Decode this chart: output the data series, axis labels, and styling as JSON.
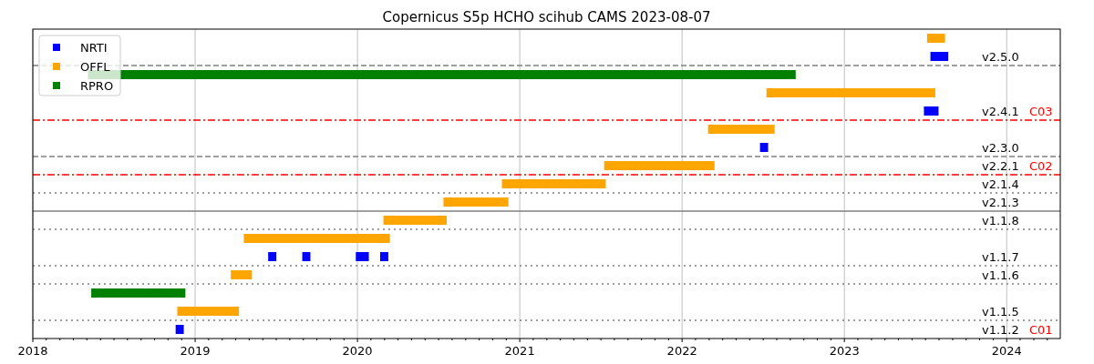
{
  "chart_data": {
    "type": "bar",
    "orientation": "horizontal",
    "title": "Copernicus S5p HCHO scihub CAMS  2023-08-07",
    "categories": [
      null,
      "v2.5.0",
      null,
      null,
      "v2.4.1",
      null,
      "v2.3.0",
      "v2.2.1",
      "v2.1.4",
      "v2.1.3",
      "v1.1.8",
      null,
      "v1.1.7",
      "v1.1.6",
      null,
      "v1.1.5",
      "v1.1.2"
    ],
    "series": [
      {
        "name": "NRTI",
        "color": "#0000ff",
        "base": [
          null,
          2023.53,
          null,
          null,
          2023.49,
          null,
          2022.48,
          null,
          null,
          null,
          null,
          null,
          2019.45,
          null,
          null,
          null,
          2018.88
        ],
        "values": [
          null,
          0.11,
          null,
          null,
          0.09,
          null,
          0.05,
          null,
          null,
          null,
          null,
          null,
          0.05,
          null,
          null,
          null,
          0.05
        ]
      },
      {
        "name": "OFFL",
        "color": "#ffa500",
        "base": [
          2023.51,
          null,
          null,
          2022.52,
          null,
          2022.16,
          null,
          2021.52,
          2020.89,
          2020.53,
          2020.16,
          2019.3,
          null,
          2019.22,
          null,
          2018.89,
          null
        ],
        "values": [
          0.11,
          null,
          null,
          1.04,
          null,
          0.41,
          null,
          0.68,
          0.64,
          0.4,
          0.39,
          0.9,
          null,
          0.13,
          null,
          0.38,
          null
        ]
      },
      {
        "name": "RPRO",
        "color": "#008000",
        "base": [
          null,
          null,
          2018.34,
          null,
          null,
          null,
          null,
          null,
          null,
          null,
          null,
          null,
          null,
          null,
          2018.36,
          null,
          null
        ],
        "values": [
          null,
          null,
          4.36,
          null,
          null,
          null,
          null,
          null,
          null,
          null,
          null,
          null,
          null,
          null,
          0.58,
          null,
          null
        ]
      },
      {
        "color": "#0000ff",
        "base": [
          null,
          null,
          null,
          null,
          null,
          null,
          null,
          null,
          null,
          null,
          null,
          null,
          2019.66,
          null,
          null,
          null,
          null
        ],
        "values": [
          null,
          null,
          null,
          null,
          null,
          null,
          null,
          null,
          null,
          null,
          null,
          null,
          0.05,
          null,
          null,
          null,
          null
        ]
      },
      {
        "color": "#0000ff",
        "base": [
          null,
          null,
          null,
          null,
          null,
          null,
          null,
          null,
          null,
          null,
          null,
          null,
          2019.99,
          null,
          null,
          null,
          null
        ],
        "values": [
          null,
          null,
          null,
          null,
          null,
          null,
          null,
          null,
          null,
          null,
          null,
          null,
          0.08,
          null,
          null,
          null,
          null
        ]
      },
      {
        "color": "#0000ff",
        "base": [
          null,
          null,
          null,
          null,
          null,
          null,
          null,
          null,
          null,
          null,
          null,
          null,
          2020.14,
          null,
          null,
          null,
          null
        ],
        "values": [
          null,
          null,
          null,
          null,
          null,
          null,
          null,
          null,
          null,
          null,
          null,
          null,
          0.05,
          null,
          null,
          null,
          null
        ]
      }
    ],
    "xlim": [
      2018,
      2024.33
    ],
    "xticks": [
      2018,
      {
        "value": 2018.083,
        "label": null
      },
      {
        "value": 2018.167,
        "label": null
      },
      {
        "value": 2018.25,
        "label": null
      },
      {
        "value": 2018.333,
        "label": null
      },
      {
        "value": 2018.417,
        "label": null
      },
      {
        "value": 2018.5,
        "label": null
      },
      {
        "value": 2018.583,
        "label": null
      },
      {
        "value": 2018.667,
        "label": null
      },
      {
        "value": 2018.75,
        "label": null
      },
      {
        "value": 2018.833,
        "label": null
      },
      {
        "value": 2018.917,
        "label": null
      },
      2019,
      {
        "value": 2019.083,
        "label": null
      },
      {
        "value": 2019.167,
        "label": null
      },
      {
        "value": 2019.25,
        "label": null
      },
      {
        "value": 2019.333,
        "label": null
      },
      {
        "value": 2019.417,
        "label": null
      },
      {
        "value": 2019.5,
        "label": null
      },
      {
        "value": 2019.583,
        "label": null
      },
      {
        "value": 2019.667,
        "label": null
      },
      {
        "value": 2019.75,
        "label": null
      },
      {
        "value": 2019.833,
        "label": null
      },
      {
        "value": 2019.917,
        "label": null
      },
      2020,
      {
        "value": 2020.083,
        "label": null
      },
      {
        "value": 2020.167,
        "label": null
      },
      {
        "value": 2020.25,
        "label": null
      },
      {
        "value": 2020.333,
        "label": null
      },
      {
        "value": 2020.417,
        "label": null
      },
      {
        "value": 2020.5,
        "label": null
      },
      {
        "value": 2020.583,
        "label": null
      },
      {
        "value": 2020.667,
        "label": null
      },
      {
        "value": 2020.75,
        "label": null
      },
      {
        "value": 2020.833,
        "label": null
      },
      {
        "value": 2020.917,
        "label": null
      },
      2021,
      {
        "value": 2021.083,
        "label": null
      },
      {
        "value": 2021.167,
        "label": null
      },
      {
        "value": 2021.25,
        "label": null
      },
      {
        "value": 2021.333,
        "label": null
      },
      {
        "value": 2021.417,
        "label": null
      },
      {
        "value": 2021.5,
        "label": null
      },
      {
        "value": 2021.583,
        "label": null
      },
      {
        "value": 2021.667,
        "label": null
      },
      {
        "value": 2021.75,
        "label": null
      },
      {
        "value": 2021.833,
        "label": null
      },
      {
        "value": 2021.917,
        "label": null
      },
      2022,
      {
        "value": 2022.083,
        "label": null
      },
      {
        "value": 2022.167,
        "label": null
      },
      {
        "value": 2022.25,
        "label": null
      },
      {
        "value": 2022.333,
        "label": null
      },
      {
        "value": 2022.417,
        "label": null
      },
      {
        "value": 2022.5,
        "label": null
      },
      {
        "value": 2022.583,
        "label": null
      },
      {
        "value": 2022.667,
        "label": null
      },
      {
        "value": 2022.75,
        "label": null
      },
      {
        "value": 2022.833,
        "label": null
      },
      {
        "value": 2022.917,
        "label": null
      },
      2023,
      {
        "value": 2023.083,
        "label": null
      },
      {
        "value": 2023.167,
        "label": null
      },
      {
        "value": 2023.25,
        "label": null
      },
      {
        "value": 2023.333,
        "label": null
      },
      {
        "value": 2023.417,
        "label": null
      },
      {
        "value": 2023.5,
        "label": null
      },
      {
        "value": 2023.583,
        "label": null
      },
      {
        "value": 2023.667,
        "label": null
      },
      {
        "value": 2023.75,
        "label": null
      },
      {
        "value": 2023.833,
        "label": null
      },
      {
        "value": 2023.917,
        "label": null
      },
      2024,
      {
        "value": 2024.083,
        "label": null
      },
      {
        "value": 2024.167,
        "label": null
      },
      {
        "value": 2024.25,
        "label": null
      }
    ],
    "grid": "x",
    "legend": "top left",
    "ref_lines": [
      {
        "axis": "y",
        "value": "v2.5.0",
        "color": "#808080",
        "line_style": "dashed"
      },
      {
        "axis": "y",
        "value": "v2.4.1",
        "color": "#ff0000",
        "line_style": "dashdot"
      },
      {
        "axis": "y",
        "value": "v2.3.0",
        "color": "#808080",
        "line_style": "dashed"
      },
      {
        "axis": "y",
        "value": "v2.2.1",
        "color": "#ff0000",
        "line_style": "dashdot"
      },
      {
        "axis": "y",
        "value": "v2.1.4",
        "color": "#808080",
        "line_style": "dotted"
      },
      {
        "axis": "y",
        "value": "v2.1.3",
        "color": "#808080",
        "line_style": "solid"
      },
      {
        "axis": "y",
        "value": "v1.1.8",
        "color": "#808080",
        "line_style": "dotted"
      },
      {
        "axis": "y",
        "value": "v1.1.7",
        "color": "#808080",
        "line_style": "dotted"
      },
      {
        "axis": "y",
        "value": "v1.1.6",
        "color": "#808080",
        "line_style": "dotted"
      },
      {
        "axis": "y",
        "value": "v1.1.5",
        "color": "#808080",
        "line_style": "dotted"
      }
    ],
    "annotations": [
      {
        "text": "C03",
        "y": "v2.4.1"
      },
      {
        "text": "C02",
        "y": "v2.2.1"
      },
      "C01"
    ]
  }
}
